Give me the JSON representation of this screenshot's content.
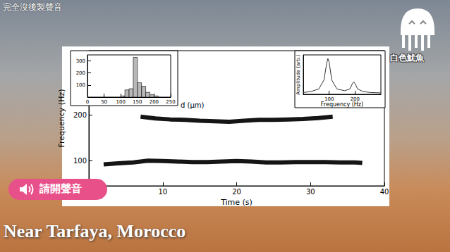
{
  "overlay": {
    "caption": "完全沒後製聲音",
    "logo_text": "白色魷魚",
    "button_text": "請開聲音",
    "location": "Near Tarfaya, Morocco"
  },
  "chart_data": [
    {
      "type": "line",
      "x_label": "Time (s)",
      "y_label": "Frequency (Hz)",
      "xlim": [
        0,
        40
      ],
      "xticks": [
        10,
        20,
        30,
        40
      ],
      "ylim": [
        45,
        340
      ],
      "yticks": [
        100,
        200
      ],
      "grid": false,
      "series": [
        {
          "color": "#151515",
          "x": [
            2,
            4,
            6,
            8,
            10,
            12,
            14,
            16,
            18,
            20,
            22,
            24,
            26,
            28,
            30,
            32,
            34,
            36,
            37
          ],
          "values": [
            92,
            94,
            96,
            100,
            99,
            98,
            97,
            97,
            98,
            99,
            98,
            96,
            96,
            97,
            97,
            97,
            96,
            96,
            95
          ]
        },
        {
          "color": "#151515",
          "x": [
            7,
            9,
            11,
            13,
            15,
            17,
            19,
            21,
            23,
            25,
            27,
            29,
            31,
            33
          ],
          "values": [
            196,
            192,
            190,
            189,
            187,
            186,
            185,
            187,
            189,
            189,
            190,
            191,
            193,
            196
          ]
        }
      ]
    },
    {
      "type": "histogram",
      "x_label": "d (μm)",
      "xlim": [
        0,
        250
      ],
      "xticks": [
        0,
        50,
        100,
        150,
        200,
        250
      ],
      "ylim": [
        0,
        350
      ],
      "yticks": [
        100,
        200,
        300
      ],
      "color": "#b8b8b8",
      "bins": [
        100,
        112.5,
        125,
        137.5,
        150,
        162.5,
        175,
        187.5,
        200,
        212.5
      ],
      "counts": [
        10,
        60,
        70,
        330,
        120,
        90,
        40,
        20,
        10
      ]
    },
    {
      "type": "line",
      "x_label": "Frequency (Hz)",
      "y_label": "Amplitude (arb.)",
      "xlim": [
        0,
        300
      ],
      "xticks": [
        100,
        200
      ],
      "ylim": [
        0,
        1.1
      ],
      "tick_labels": "x",
      "series": [
        {
          "color": "#333333",
          "x": [
            0,
            30,
            60,
            80,
            90,
            95,
            100,
            110,
            130,
            160,
            180,
            190,
            195,
            200,
            210,
            230,
            260,
            300
          ],
          "values": [
            0.05,
            0.08,
            0.15,
            0.4,
            0.85,
            1.0,
            0.9,
            0.4,
            0.15,
            0.1,
            0.15,
            0.3,
            0.35,
            0.3,
            0.15,
            0.08,
            0.05,
            0.04
          ]
        }
      ]
    }
  ]
}
